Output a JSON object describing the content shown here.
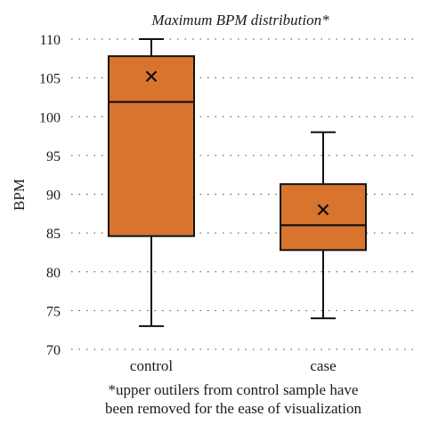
{
  "chart_data": {
    "type": "box",
    "title": "Maximum BPM distribution*",
    "ylabel": "BPM",
    "xlabel": "",
    "ylim": [
      70,
      110
    ],
    "yticks": [
      70,
      75,
      80,
      85,
      90,
      95,
      100,
      105,
      110
    ],
    "grid": "horizontal dotted",
    "categories": [
      "control",
      "case"
    ],
    "boxes": [
      {
        "category": "control",
        "min": 73,
        "q1": 84.6,
        "median": 101.9,
        "q3": 107.8,
        "max": 110,
        "mean": 105.2
      },
      {
        "category": "case",
        "min": 74,
        "q1": 82.8,
        "median": 86.0,
        "q3": 91.3,
        "max": 98,
        "mean": 88.0
      }
    ],
    "box_color": "#d9742f",
    "footnote": [
      "*upper outilers from control sample have",
      "been removed for the ease of visualization"
    ]
  }
}
